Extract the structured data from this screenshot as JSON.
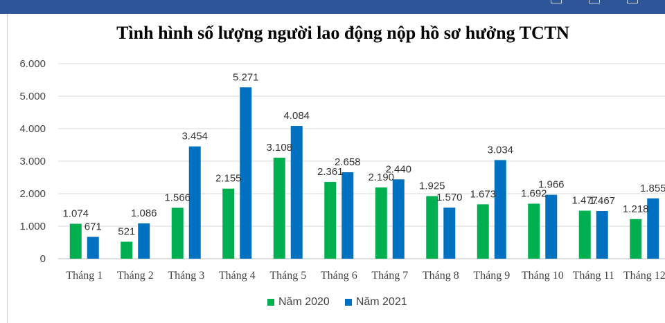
{
  "chart_data": {
    "type": "bar",
    "title": "Tình hình số lượng người lao động nộp hồ sơ hưởng TCTN",
    "xlabel": "",
    "ylabel": "",
    "categories": [
      "Tháng 1",
      "Tháng 2",
      "Tháng 3",
      "Tháng 4",
      "Tháng 5",
      "Tháng 6",
      "Tháng 7",
      "Tháng 8",
      "Tháng 9",
      "Tháng 10",
      "Tháng 11",
      "Tháng 12"
    ],
    "series": [
      {
        "name": "Năm 2020",
        "color": "#00b050",
        "values": [
          1074,
          521,
          1566,
          2155,
          3108,
          2361,
          2190,
          1925,
          1673,
          1692,
          1477,
          1218
        ],
        "labels": [
          "1.074",
          "521",
          "1.566",
          "2.155",
          "3.108",
          "2.361",
          "2.190",
          "1.925",
          "1.673",
          "1.692",
          "1.477",
          "1.218"
        ]
      },
      {
        "name": "Năm 2021",
        "color": "#0070c0",
        "values": [
          671,
          1086,
          3454,
          5271,
          4084,
          2658,
          2440,
          1570,
          3034,
          1966,
          1467,
          1855
        ],
        "labels": [
          "671",
          "1.086",
          "3.454",
          "5.271",
          "4.084",
          "2.658",
          "2.440",
          "1.570",
          "3.034",
          "1.966",
          "1.467",
          "1.855"
        ]
      }
    ],
    "ylim": [
      0,
      6000
    ],
    "yticks": [
      0,
      1000,
      2000,
      3000,
      4000,
      5000,
      6000
    ],
    "ytick_labels": [
      "0",
      "1.000",
      "2.000",
      "3.000",
      "4.000",
      "5.000",
      "6.000"
    ],
    "grid": true,
    "legend_position": "bottom"
  }
}
